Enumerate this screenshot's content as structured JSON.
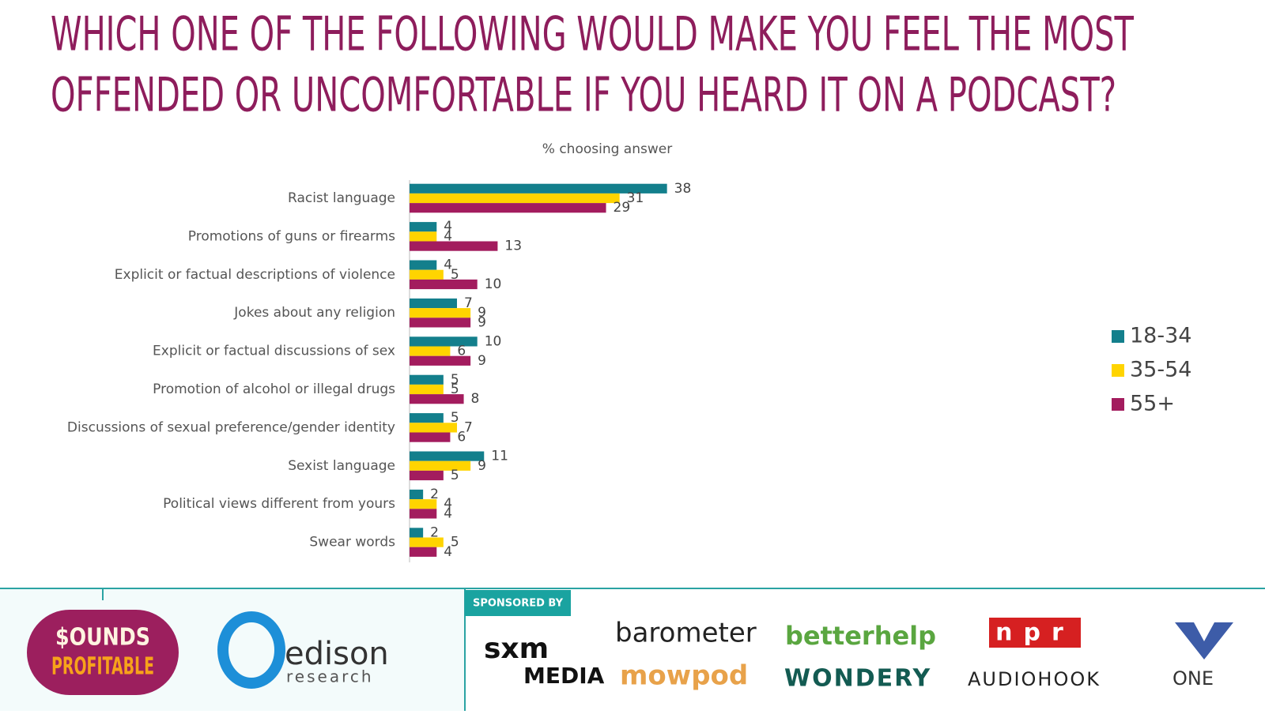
{
  "chart_data": {
    "type": "hbar",
    "title": [
      "WHICH ONE OF THE FOLLOWING WOULD MAKE YOU FEEL THE MOST",
      "OFFENDED OR UNCOMFORTABLE IF YOU HEARD IT ON A PODCAST?"
    ],
    "subtitle": "% choosing answer",
    "categories": [
      "Racist language",
      "Promotions of guns or firearms",
      "Explicit or factual descriptions of violence",
      "Jokes about any religion",
      "Explicit or factual discussions of sex",
      "Promotion of alcohol or illegal drugs",
      "Discussions of sexual preference/gender identity",
      "Sexist language",
      "Political views different from yours",
      "Swear words"
    ],
    "series": [
      {
        "name": "18-34",
        "color": "#137f8c",
        "values": [
          38,
          4,
          4,
          7,
          10,
          5,
          5,
          11,
          2,
          2
        ]
      },
      {
        "name": "35-54",
        "color": "#ffd400",
        "values": [
          31,
          4,
          5,
          9,
          6,
          5,
          7,
          9,
          4,
          5
        ]
      },
      {
        "name": "55+",
        "color": "#a31c5e",
        "values": [
          29,
          13,
          10,
          9,
          9,
          8,
          6,
          5,
          4,
          4
        ]
      }
    ],
    "xlim": [
      0,
      100
    ],
    "legend": "right"
  },
  "footer": {
    "sponsored_by": "SPONSORED BY",
    "logos": [
      "$OUNDS",
      "PROFITABLE",
      "edison",
      "research",
      "sxm",
      "MEDIA",
      "barometer",
      "mowpod",
      "betterhelp",
      "WONDERY",
      "npr",
      "AUDIOHOOK",
      "ONE"
    ]
  }
}
